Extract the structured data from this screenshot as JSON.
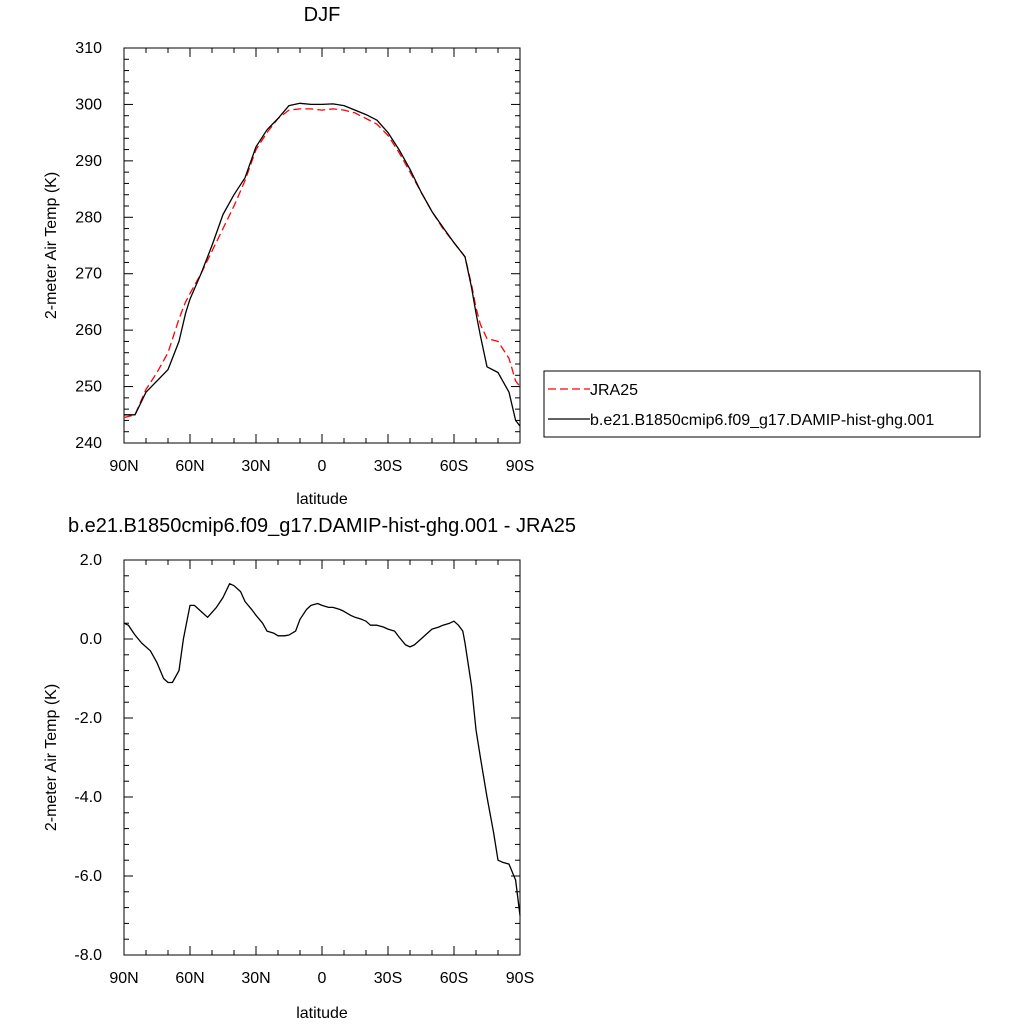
{
  "chart_data": [
    {
      "type": "line",
      "title": "DJF",
      "xlabel": "latitude",
      "ylabel": "2-meter Air Temp (K)",
      "xlim": [
        90,
        -90
      ],
      "ylim": [
        240,
        310
      ],
      "x_ticks": [
        90,
        60,
        30,
        0,
        -30,
        -60,
        -90
      ],
      "x_tick_labels": [
        "90N",
        "60N",
        "30N",
        "0",
        "30S",
        "60S",
        "90S"
      ],
      "y_ticks": [
        240,
        250,
        260,
        270,
        280,
        290,
        300,
        310
      ],
      "y_tick_labels": [
        "240",
        "250",
        "260",
        "270",
        "280",
        "290",
        "300",
        "310"
      ],
      "legend": "right",
      "series": [
        {
          "name": "JRA25",
          "color": "#ff0000",
          "dash": "dashed",
          "x": [
            90,
            85,
            80,
            75,
            70,
            65,
            62,
            60,
            55,
            50,
            45,
            40,
            35,
            30,
            25,
            20,
            15,
            10,
            5,
            0,
            -5,
            -10,
            -15,
            -20,
            -25,
            -30,
            -35,
            -40,
            -45,
            -50,
            -55,
            -60,
            -65,
            -68,
            -70,
            -72,
            -75,
            -80,
            -85,
            -88,
            -90
          ],
          "y": [
            244.5,
            245,
            249.5,
            252.5,
            256,
            262,
            265,
            266.5,
            270,
            274,
            278,
            282,
            286.5,
            292,
            295,
            297.5,
            299,
            299.2,
            299.2,
            299,
            299.2,
            299,
            298.5,
            297.5,
            296.5,
            294.5,
            291.5,
            288,
            284.5,
            281,
            278,
            275.5,
            273,
            268,
            264,
            261,
            258.5,
            258,
            255,
            251,
            250
          ]
        },
        {
          "name": "b.e21.B1850cmip6.f09_g17.DAMIP-hist-ghg.001",
          "color": "#000000",
          "dash": "solid",
          "x": [
            90,
            85,
            80,
            75,
            70,
            65,
            62,
            60,
            55,
            50,
            45,
            40,
            35,
            30,
            25,
            20,
            15,
            10,
            5,
            0,
            -5,
            -10,
            -15,
            -20,
            -25,
            -30,
            -35,
            -40,
            -45,
            -50,
            -55,
            -60,
            -65,
            -68,
            -70,
            -72,
            -75,
            -80,
            -85,
            -88,
            -90
          ],
          "y": [
            245,
            245,
            249,
            251,
            253,
            258,
            263,
            265.5,
            270,
            275,
            280.5,
            284,
            287,
            292.5,
            295.5,
            297.5,
            299.8,
            300.2,
            300,
            300,
            300.1,
            299.8,
            299,
            298.2,
            297.2,
            295,
            292,
            288.5,
            284.5,
            281,
            278.2,
            275.5,
            273,
            267.5,
            263,
            259,
            253.5,
            252.5,
            249,
            244,
            243
          ]
        }
      ]
    },
    {
      "type": "line",
      "title": "b.e21.B1850cmip6.f09_g17.DAMIP-hist-ghg.001 - JRA25",
      "xlabel": "latitude",
      "ylabel": "2-meter Air Temp (K)",
      "xlim": [
        90,
        -90
      ],
      "ylim": [
        -8,
        2
      ],
      "x_ticks": [
        90,
        60,
        30,
        0,
        -30,
        -60,
        -90
      ],
      "x_tick_labels": [
        "90N",
        "60N",
        "30N",
        "0",
        "30S",
        "60S",
        "90S"
      ],
      "y_ticks": [
        -8,
        -6,
        -4,
        -2,
        0,
        2
      ],
      "y_tick_labels": [
        "-8.0",
        "-6.0",
        "-4.0",
        "-2.0",
        "0.0",
        "2.0"
      ],
      "series": [
        {
          "color": "#000000",
          "dash": "solid",
          "x": [
            90,
            88,
            85,
            82,
            78,
            75,
            72,
            70,
            68,
            65,
            63,
            60,
            58,
            55,
            52,
            48,
            45,
            42,
            40,
            37,
            35,
            32,
            30,
            27,
            25,
            22,
            20,
            17,
            15,
            12,
            10,
            7,
            5,
            2,
            0,
            -3,
            -5,
            -8,
            -10,
            -13,
            -15,
            -18,
            -20,
            -22,
            -25,
            -28,
            -30,
            -33,
            -35,
            -38,
            -40,
            -42,
            -45,
            -47,
            -50,
            -53,
            -55,
            -58,
            -60,
            -62,
            -64,
            -65,
            -68,
            -70,
            -72,
            -75,
            -78,
            -80,
            -82,
            -85,
            -88,
            -90
          ],
          "y": [
            0.4,
            0.35,
            0.1,
            -0.1,
            -0.3,
            -0.6,
            -1.0,
            -1.1,
            -1.1,
            -0.8,
            0,
            0.85,
            0.85,
            0.7,
            0.55,
            0.8,
            1.05,
            1.4,
            1.35,
            1.2,
            0.95,
            0.75,
            0.6,
            0.4,
            0.2,
            0.15,
            0.08,
            0.08,
            0.1,
            0.2,
            0.5,
            0.75,
            0.85,
            0.9,
            0.85,
            0.8,
            0.8,
            0.75,
            0.7,
            0.6,
            0.55,
            0.5,
            0.45,
            0.35,
            0.35,
            0.3,
            0.25,
            0.2,
            0.05,
            -0.15,
            -0.2,
            -0.15,
            0,
            0.1,
            0.25,
            0.3,
            0.35,
            0.4,
            0.45,
            0.35,
            0.2,
            -0.1,
            -1.2,
            -2.3,
            -3.0,
            -4.0,
            -4.9,
            -5.6,
            -5.65,
            -5.7,
            -6.1,
            -7.0
          ]
        }
      ]
    }
  ]
}
